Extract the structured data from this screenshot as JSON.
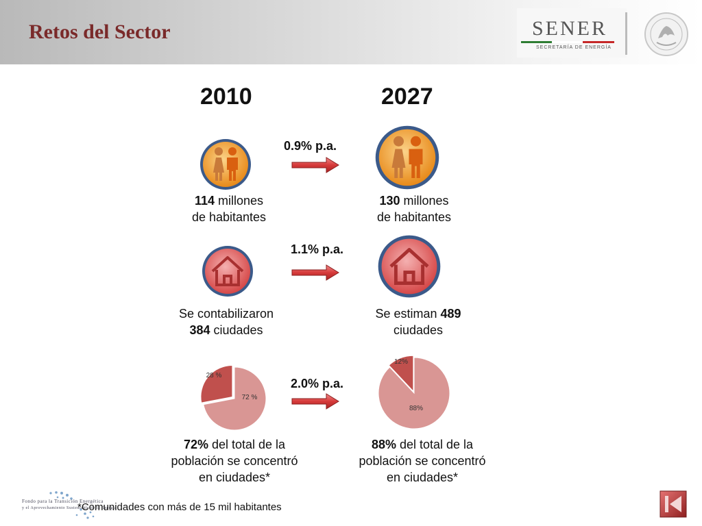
{
  "header": {
    "title": "Retos del Sector",
    "logo_name": "SENER",
    "logo_subtitle": "SECRETARÍA DE ENERGÍA",
    "seal_icon": "mexico-seal-icon"
  },
  "years": {
    "left": "2010",
    "right": "2027"
  },
  "rows": [
    {
      "rate": "0.9% p.a.",
      "icon": "people-icon",
      "left": {
        "value": "114",
        "text": " millones",
        "line2": "de habitantes"
      },
      "right": {
        "value": "130",
        "text": " millones",
        "line2": "de habitantes"
      }
    },
    {
      "rate": "1.1% p.a.",
      "icon": "house-icon",
      "left": {
        "prefix": "Se contabilizaron",
        "value": "384",
        "text": " ciudades"
      },
      "right": {
        "prefix": "Se estiman ",
        "value": "489",
        "line2": "ciudades"
      }
    },
    {
      "rate": "2.0% p.a.",
      "left": {
        "value": "72%",
        "text": " del total de la",
        "line2": "población se concentró",
        "line3": "en ciudades*"
      },
      "right": {
        "value": "88%",
        "text": " del total de la",
        "line2": "población se concentró",
        "line3": "en ciudades*"
      }
    }
  ],
  "chart_data": [
    {
      "type": "pie",
      "categories": [
        "28 %",
        "72 %"
      ],
      "values": [
        28,
        72
      ],
      "colors": [
        "#c0504d",
        "#d99694"
      ]
    },
    {
      "type": "pie",
      "categories": [
        "12%",
        "88%"
      ],
      "values": [
        12,
        88
      ],
      "colors": [
        "#c0504d",
        "#d99694"
      ]
    }
  ],
  "footer": {
    "note": "*Comunidades con más de 15 mil habitantes",
    "fondo_line1": "Fondo para la Transición Energética",
    "fondo_line2": "y el Aprovechamiento Sustentable de la Energía",
    "back_icon": "skip-back-icon"
  }
}
